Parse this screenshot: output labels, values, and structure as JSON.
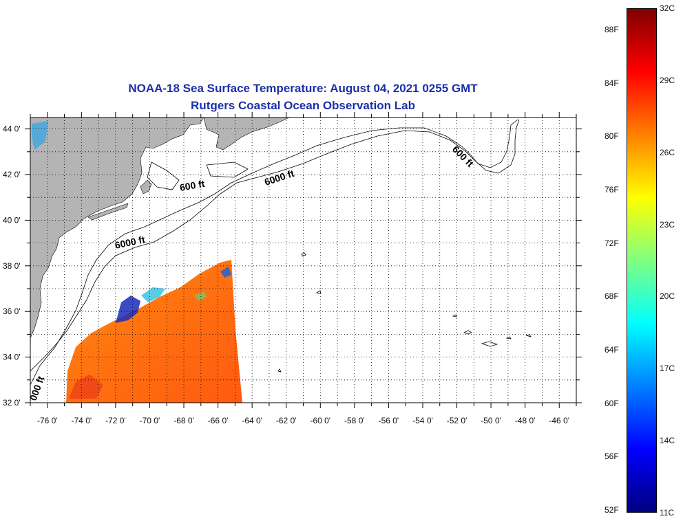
{
  "title": {
    "line1": "NOAA-18 Sea Surface Temperature:  August 04, 2021 0255 GMT",
    "line2": "Rutgers Coastal Ocean Observation Lab"
  },
  "map": {
    "lat_labels": [
      "44 0'",
      "42 0'",
      "40 0'",
      "38 0'",
      "36 0'",
      "34 0'",
      "32 0'"
    ],
    "lon_labels": [
      "-76 0'",
      "-74 0'",
      "-72 0'",
      "-70 0'",
      "-68 0'",
      "-66 0'",
      "-64 0'",
      "-62 0'",
      "-60 0'",
      "-58 0'",
      "-56 0'",
      "-54 0'",
      "-52 0'",
      "-50 0'",
      "-48 0'",
      "-46 0'"
    ],
    "lat_values": [
      44,
      42,
      40,
      38,
      36,
      34,
      32
    ],
    "lon_values": [
      -76,
      -74,
      -72,
      -70,
      -68,
      -66,
      -64,
      -62,
      -60,
      -58,
      -56,
      -54,
      -52,
      -50,
      -48,
      -46
    ],
    "lon_range": [
      -77,
      -45
    ],
    "lat_range": [
      32,
      44.5
    ],
    "contour_labels": [
      "600 ft",
      "6000 ft",
      "6000 ft",
      "600 ft",
      "000 ft"
    ],
    "land_color": "#b4b4b4",
    "grid": "dotted"
  },
  "colorbar": {
    "celsius_labels": [
      "32C",
      "29C",
      "26C",
      "23C",
      "20C",
      "17C",
      "14C",
      "11C"
    ],
    "fahrenheit_labels": [
      "88F",
      "84F",
      "80F",
      "76F",
      "72F",
      "68F",
      "64F",
      "60F",
      "56F",
      "52F"
    ],
    "range_c": [
      11,
      32
    ],
    "colormap": "jet",
    "colors": [
      "#7f0000",
      "#ff0000",
      "#ff8000",
      "#ffff00",
      "#80ff80",
      "#00ffff",
      "#0080ff",
      "#0000ff",
      "#00007f"
    ]
  }
}
